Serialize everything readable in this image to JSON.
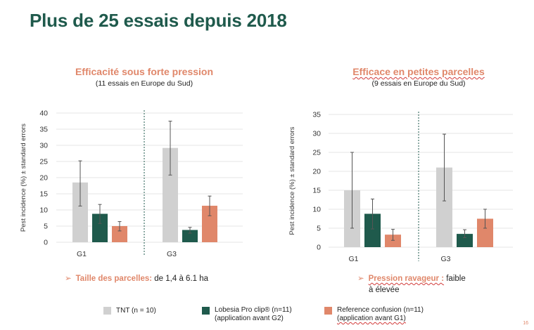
{
  "title": "Plus de 25 essais depuis 2018",
  "colors": {
    "tnt": "#d0d0d0",
    "lobesia": "#1f5a4c",
    "reference": "#e0876a",
    "accent": "#e0876a",
    "title": "#1f5a4c"
  },
  "left": {
    "title": "Efficacité sous forte pression",
    "subtitle": "(11 essais en Europe du Sud)",
    "bullet_label": "Taille des parcelles:",
    "bullet_text": " de 1,4 à 6.1 ha"
  },
  "right": {
    "title": "Efficace en petites parcelles",
    "subtitle": "(9 essais en Europe du Sud)",
    "bullet_label": "Pression ravageur :",
    "bullet_text": " faible",
    "bullet_text2": "à élevée"
  },
  "legend": {
    "tnt": "TNT  (n = 10)",
    "lobesia_1": "Lobesia Pro clip® (n=11)",
    "lobesia_2": "(application avant G2)",
    "reference_1": "Reference confusion (n=11)",
    "reference_2": "(application avant G1)"
  },
  "page_number": "16",
  "chart_data": [
    {
      "type": "bar",
      "categories": [
        "G1",
        "G3"
      ],
      "ylabel": "Pest incidence (%) ± standard errors",
      "ylim": [
        0,
        40
      ],
      "yticks": [
        0,
        5,
        10,
        15,
        20,
        25,
        30,
        35,
        40
      ],
      "series": [
        {
          "name": "TNT  (n = 10)",
          "values": [
            18.5,
            29.2
          ],
          "err_low": [
            11.2,
            20.8
          ],
          "err_high": [
            25.2,
            37.5
          ]
        },
        {
          "name": "Lobesia Pro clip® (n=11)",
          "values": [
            8.8,
            3.8
          ],
          "err_low": [
            5.8,
            2.8
          ],
          "err_high": [
            11.7,
            4.6
          ]
        },
        {
          "name": "Reference confusion (n=11)",
          "values": [
            5.0,
            11.3
          ],
          "err_low": [
            3.5,
            8.2
          ],
          "err_high": [
            6.4,
            14.3
          ]
        }
      ]
    },
    {
      "type": "bar",
      "categories": [
        "G1",
        "G3"
      ],
      "ylabel": "Pest incidence (%) ± standard errors",
      "ylim": [
        0,
        35
      ],
      "yticks": [
        0,
        5,
        10,
        15,
        20,
        25,
        30,
        35
      ],
      "series": [
        {
          "name": "TNT  (n = 10)",
          "values": [
            15.0,
            21.0
          ],
          "err_low": [
            5.0,
            12.2
          ],
          "err_high": [
            25.0,
            29.8
          ]
        },
        {
          "name": "Lobesia Pro clip® (n=11)",
          "values": [
            8.8,
            3.5
          ],
          "err_low": [
            4.8,
            2.5
          ],
          "err_high": [
            12.7,
            4.6
          ]
        },
        {
          "name": "Reference confusion (n=11)",
          "values": [
            3.3,
            7.5
          ],
          "err_low": [
            1.8,
            5.0
          ],
          "err_high": [
            4.7,
            10.0
          ]
        }
      ]
    }
  ]
}
